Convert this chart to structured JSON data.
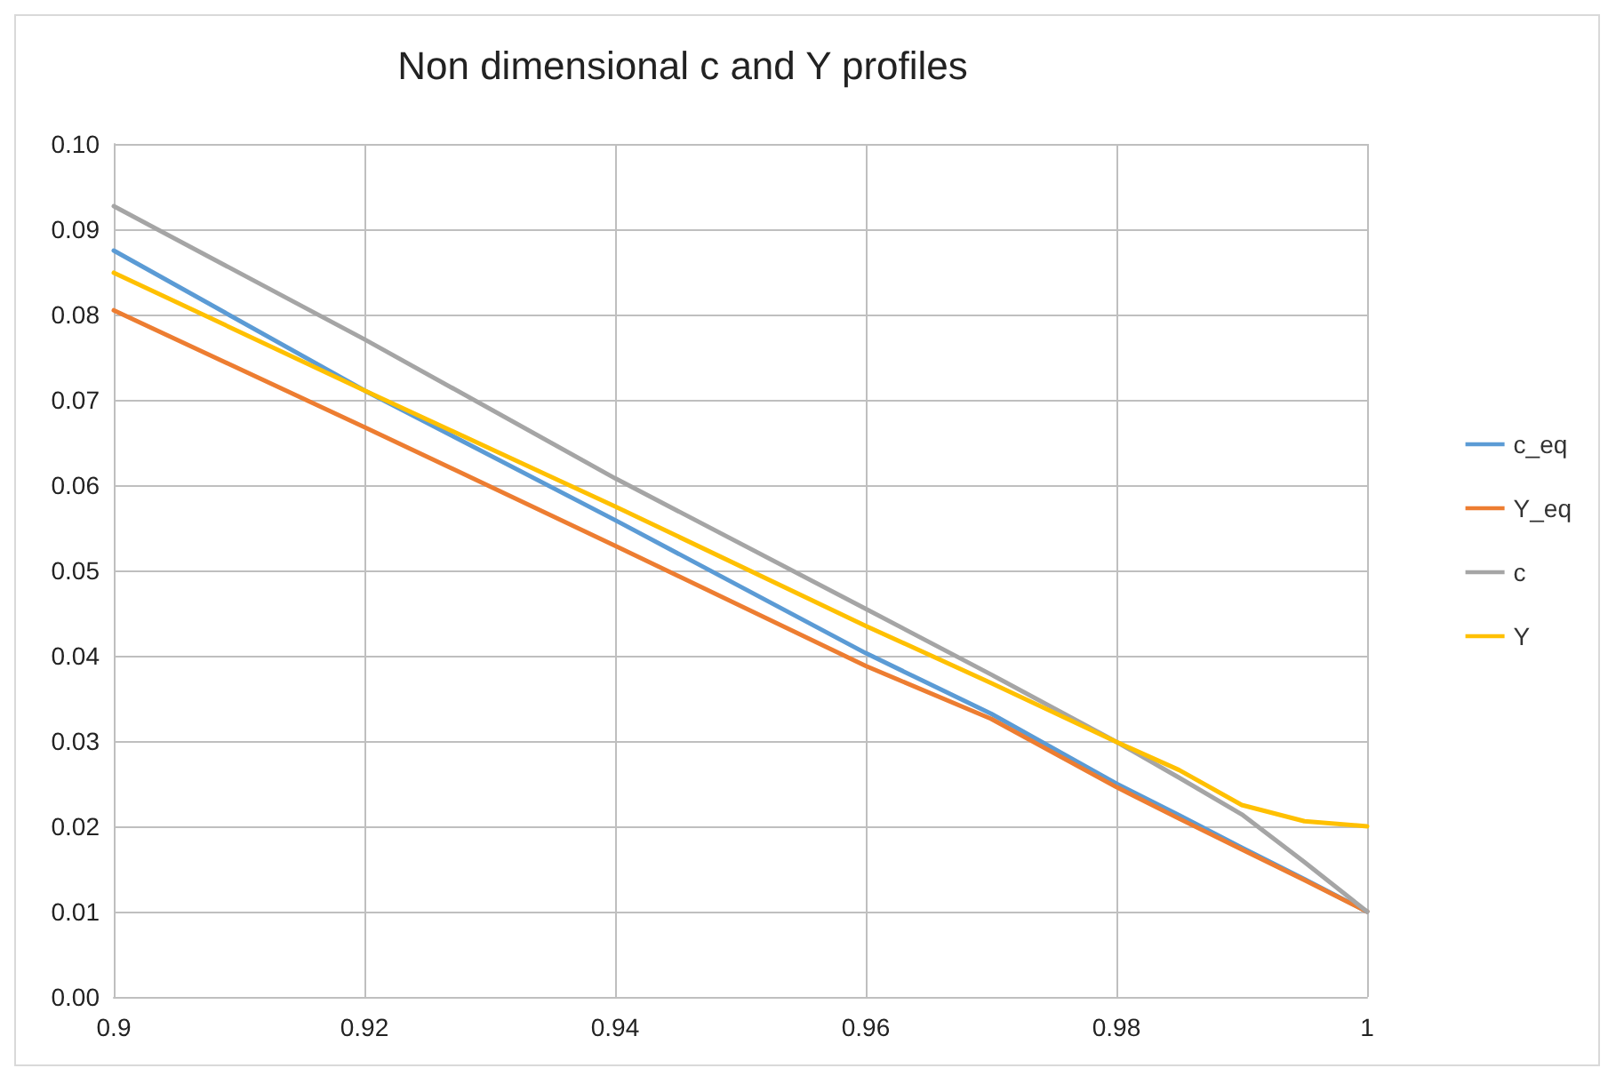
{
  "chart_data": {
    "type": "line",
    "title": "Non dimensional c and Y profiles",
    "x": [
      0.9,
      0.92,
      0.94,
      0.96,
      0.97,
      0.98,
      0.985,
      0.99,
      0.995,
      1
    ],
    "series": [
      {
        "name": "c_eq",
        "color": "#5b9bd5",
        "values": [
          0.0875,
          0.0711,
          0.0559,
          0.0403,
          0.0332,
          0.025,
          0.0213,
          0.0175,
          0.0138,
          0.01
        ]
      },
      {
        "name": "Y_eq",
        "color": "#ed7d31",
        "values": [
          0.0805,
          0.0668,
          0.0529,
          0.0388,
          0.0326,
          0.0246,
          0.0209,
          0.0173,
          0.0137,
          0.01
        ]
      },
      {
        "name": "c",
        "color": "#a5a5a5",
        "values": [
          0.0927,
          0.0771,
          0.0608,
          0.0455,
          0.0378,
          0.0299,
          0.0257,
          0.0214,
          0.0158,
          0.01
        ]
      },
      {
        "name": "Y",
        "color": "#ffc000",
        "values": [
          0.0849,
          0.0711,
          0.0575,
          0.0435,
          0.0368,
          0.0299,
          0.0266,
          0.0225,
          0.0206,
          0.02
        ]
      }
    ],
    "xlim": [
      0.9,
      1
    ],
    "xticks": [
      0.9,
      0.92,
      0.94,
      0.96,
      0.98,
      1
    ],
    "ylim": [
      0,
      0.1
    ],
    "yticks": [
      {
        "value": 0,
        "label": "0.00"
      },
      {
        "value": 0.01,
        "label": "0.01"
      },
      {
        "value": 0.02,
        "label": "0.02"
      },
      {
        "value": 0.03,
        "label": "0.03"
      },
      {
        "value": 0.04,
        "label": "0.04"
      },
      {
        "value": 0.05,
        "label": "0.05"
      },
      {
        "value": 0.06,
        "label": "0.06"
      },
      {
        "value": 0.07,
        "label": "0.07"
      },
      {
        "value": 0.08,
        "label": "0.08"
      },
      {
        "value": 0.09,
        "label": "0.09"
      },
      {
        "value": 0.1,
        "label": "0.10"
      }
    ],
    "grid": true,
    "legend": "right",
    "marker": "none",
    "line_style": "solid"
  }
}
